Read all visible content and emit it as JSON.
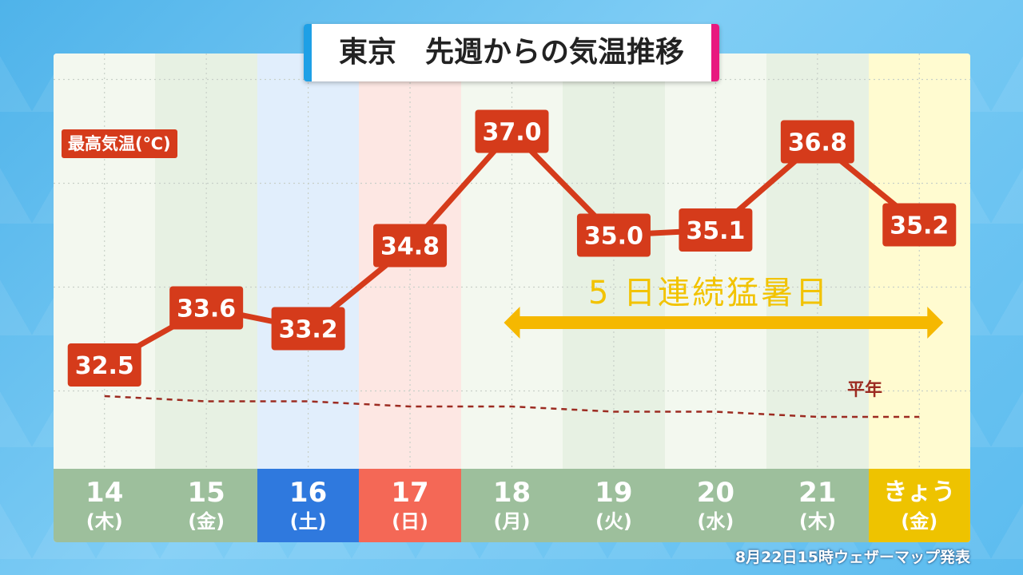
{
  "title": "東京　先週からの気温推移",
  "y_label": "最高気温(℃)",
  "heatwave_label": "5 日連続猛暑日",
  "normal_label": "平年",
  "footer": "8月22日15時ウェザーマップ発表",
  "colors": {
    "line": "#d53b1b",
    "normal_line": "#9c2b21",
    "arrow": "#f5b800",
    "sat_header": "#2f79de",
    "sun_header": "#f46856",
    "today_header": "#eec300",
    "weekday_header": "#9dbf9c"
  },
  "chart_data": {
    "type": "line",
    "categories": [
      {
        "num": "14",
        "wd": "(木)",
        "kind": "weekday"
      },
      {
        "num": "15",
        "wd": "(金)",
        "kind": "weekday"
      },
      {
        "num": "16",
        "wd": "(土)",
        "kind": "sat"
      },
      {
        "num": "17",
        "wd": "(日)",
        "kind": "sun"
      },
      {
        "num": "18",
        "wd": "(月)",
        "kind": "weekday"
      },
      {
        "num": "19",
        "wd": "(火)",
        "kind": "weekday"
      },
      {
        "num": "20",
        "wd": "(水)",
        "kind": "weekday"
      },
      {
        "num": "21",
        "wd": "(木)",
        "kind": "weekday"
      },
      {
        "num": "きょう",
        "wd": "(金)",
        "kind": "today"
      }
    ],
    "series": [
      {
        "name": "最高気温(℃)",
        "values": [
          32.5,
          33.6,
          33.2,
          34.8,
          37.0,
          35.0,
          35.1,
          36.8,
          35.2
        ],
        "labels": [
          "32.5",
          "33.6",
          "33.2",
          "34.8",
          "37.0",
          "35.0",
          "35.1",
          "36.8",
          "35.2"
        ]
      },
      {
        "name": "平年",
        "values": [
          31.9,
          31.8,
          31.8,
          31.7,
          31.7,
          31.6,
          31.6,
          31.5,
          31.5
        ]
      }
    ],
    "heatwave_range": [
      4,
      8
    ],
    "ylim": [
      30.5,
      38.5
    ],
    "grid": true
  }
}
